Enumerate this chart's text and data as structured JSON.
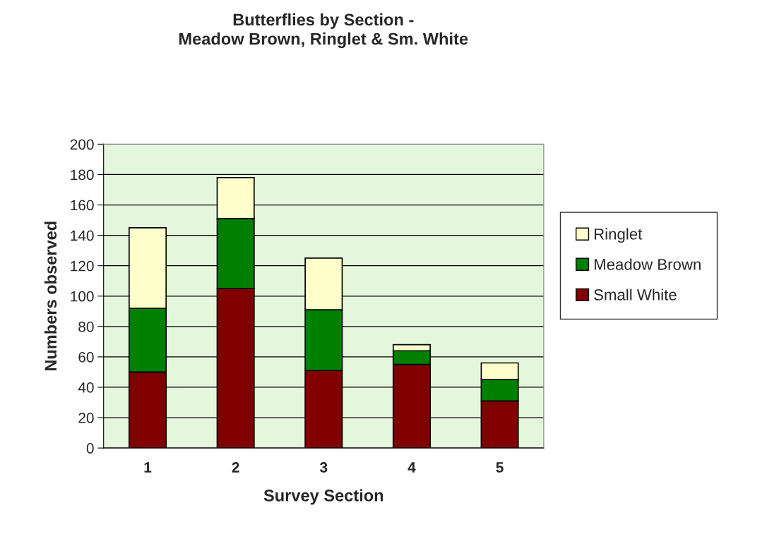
{
  "chart_data": {
    "type": "bar",
    "title": "Butterflies by Section -\nMeadow Brown, Ringlet & Sm. White",
    "xlabel": "Survey Section",
    "ylabel": "Numbers observed",
    "categories": [
      "1",
      "2",
      "3",
      "4",
      "5"
    ],
    "stacked": true,
    "series": [
      {
        "name": "Small White",
        "color": "#800000",
        "values": [
          50,
          105,
          51,
          55,
          31
        ]
      },
      {
        "name": "Meadow Brown",
        "color": "#008000",
        "values": [
          42,
          46,
          40,
          9,
          14
        ]
      },
      {
        "name": "Ringlet",
        "color": "#ffffcc",
        "values": [
          53,
          27,
          34,
          4,
          11
        ]
      }
    ],
    "ylim": [
      0,
      200
    ],
    "yticks": [
      0,
      20,
      40,
      60,
      80,
      100,
      120,
      140,
      160,
      180,
      200
    ],
    "grid": "y",
    "legend": "right"
  }
}
